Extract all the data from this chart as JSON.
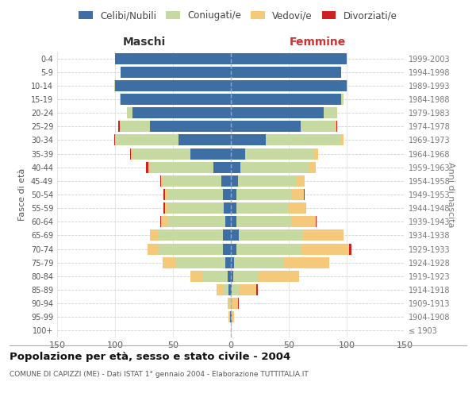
{
  "age_groups": [
    "100+",
    "95-99",
    "90-94",
    "85-89",
    "80-84",
    "75-79",
    "70-74",
    "65-69",
    "60-64",
    "55-59",
    "50-54",
    "45-49",
    "40-44",
    "35-39",
    "30-34",
    "25-29",
    "20-24",
    "15-19",
    "10-14",
    "5-9",
    "0-4"
  ],
  "birth_years": [
    "≤ 1903",
    "1904-1908",
    "1909-1913",
    "1914-1918",
    "1919-1923",
    "1924-1928",
    "1929-1933",
    "1934-1938",
    "1939-1943",
    "1944-1948",
    "1949-1953",
    "1954-1958",
    "1959-1963",
    "1964-1968",
    "1969-1973",
    "1974-1978",
    "1979-1983",
    "1984-1988",
    "1989-1993",
    "1994-1998",
    "1999-2003"
  ],
  "maschi": {
    "celibi": [
      0,
      1,
      0,
      2,
      3,
      5,
      7,
      7,
      5,
      6,
      7,
      8,
      15,
      35,
      45,
      70,
      85,
      95,
      100,
      95,
      100
    ],
    "coniugati": [
      0,
      0,
      1,
      4,
      22,
      42,
      55,
      55,
      50,
      48,
      48,
      50,
      55,
      50,
      55,
      25,
      5,
      1,
      1,
      0,
      0
    ],
    "vedovi": [
      0,
      1,
      2,
      6,
      10,
      12,
      10,
      8,
      5,
      3,
      2,
      2,
      1,
      1,
      0,
      1,
      0,
      0,
      0,
      0,
      0
    ],
    "divorziati": [
      0,
      0,
      0,
      0,
      0,
      0,
      0,
      0,
      1,
      1,
      1,
      1,
      2,
      1,
      1,
      1,
      0,
      0,
      0,
      0,
      0
    ]
  },
  "femmine": {
    "nubili": [
      0,
      1,
      0,
      1,
      2,
      3,
      5,
      7,
      5,
      5,
      5,
      6,
      8,
      12,
      30,
      60,
      80,
      95,
      100,
      95,
      100
    ],
    "coniugate": [
      0,
      0,
      1,
      6,
      22,
      42,
      55,
      55,
      48,
      45,
      48,
      50,
      60,
      60,
      65,
      30,
      12,
      2,
      1,
      0,
      0
    ],
    "vedove": [
      1,
      2,
      5,
      15,
      35,
      40,
      42,
      35,
      20,
      15,
      10,
      8,
      5,
      3,
      2,
      1,
      0,
      0,
      0,
      0,
      0
    ],
    "divorziate": [
      0,
      0,
      1,
      1,
      0,
      0,
      2,
      0,
      1,
      0,
      1,
      0,
      0,
      0,
      0,
      1,
      0,
      0,
      0,
      0,
      0
    ]
  },
  "colors": {
    "celibi_nubili": "#3d6fa5",
    "coniugati": "#c5d9a0",
    "vedovi": "#f5c97a",
    "divorziati": "#cc2222"
  },
  "title": "Popolazione per età, sesso e stato civile - 2004",
  "subtitle": "COMUNE DI CAPIZZI (ME) - Dati ISTAT 1° gennaio 2004 - Elaborazione TUTTITALIA.IT",
  "xlabel_left": "Maschi",
  "xlabel_right": "Femmine",
  "ylabel_left": "Fasce di età",
  "ylabel_right": "Anni di nascita",
  "xlim": 150,
  "legend_labels": [
    "Celibi/Nubili",
    "Coniugati/e",
    "Vedovi/e",
    "Divorziati/e"
  ],
  "background_color": "#ffffff",
  "grid_color": "#cccccc"
}
